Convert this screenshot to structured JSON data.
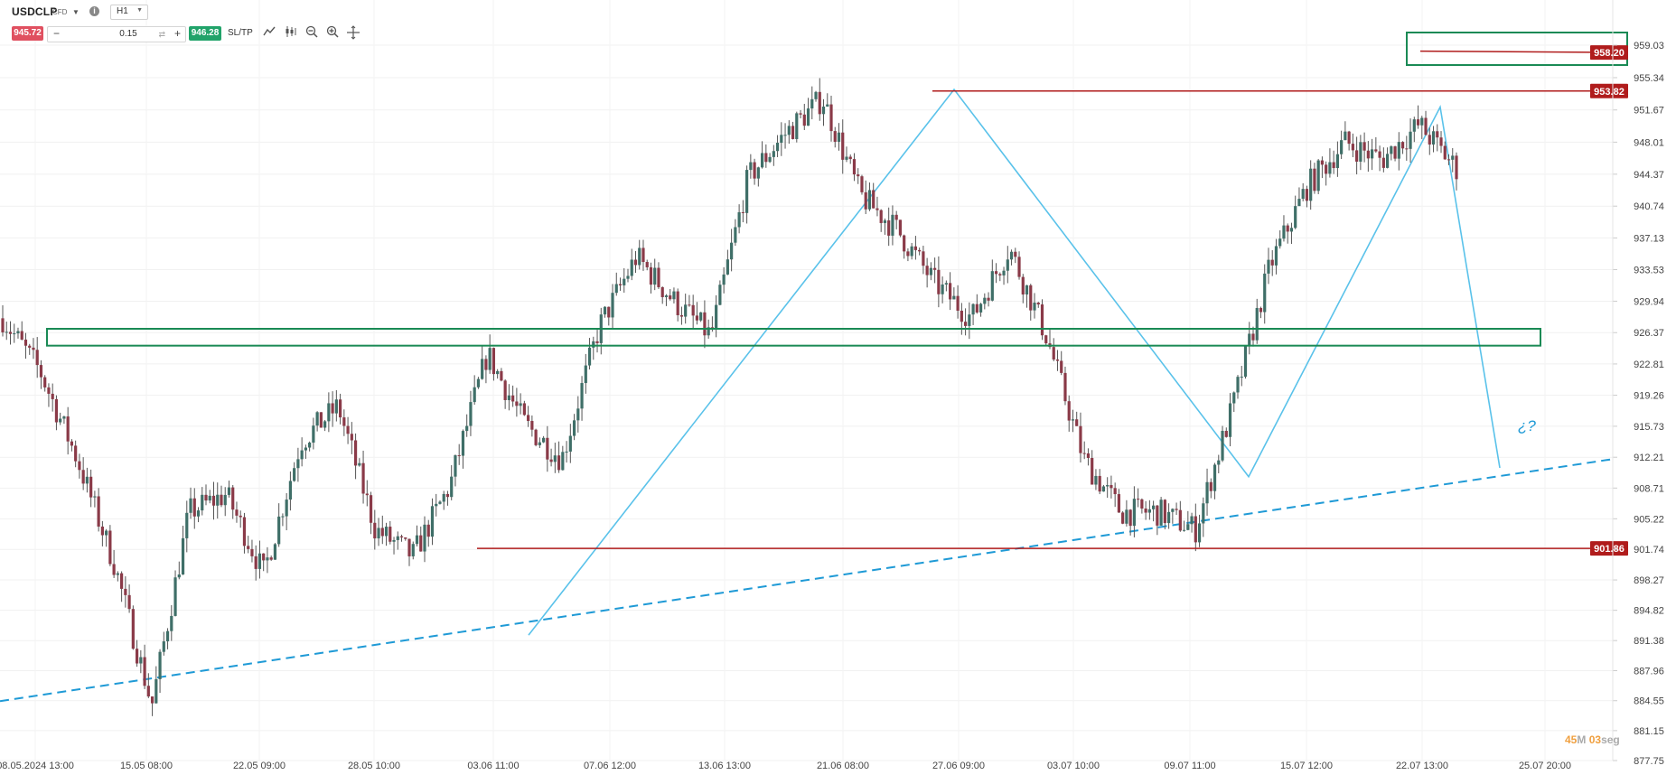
{
  "toolbar": {
    "symbol": "USDCLP",
    "instrument_type": "CFD",
    "timeframe": "H1",
    "sell_price": "945.72",
    "quantity": "0.15",
    "buy_price": "946.28",
    "sltp_label": "SL/TP",
    "icons": [
      "chart-type-icon",
      "indicators-icon",
      "zoom-out-icon",
      "zoom-in-icon",
      "crosshair-icon"
    ]
  },
  "colors": {
    "sell": "#e05060",
    "buy": "#21a36a",
    "bull_candle": "#3f6f68",
    "bear_candle": "#8a3a48",
    "resistance": "#b01c1c",
    "zone": "#1a8a55",
    "trendline": "#1f9ad6",
    "projection": "#5ac2ea"
  },
  "price_axis": {
    "ticks": [
      "959.03",
      "955.34",
      "951.67",
      "948.01",
      "944.37",
      "940.74",
      "937.13",
      "933.53",
      "929.94",
      "926.37",
      "922.81",
      "919.26",
      "915.73",
      "912.21",
      "908.71",
      "905.22",
      "901.74",
      "898.27",
      "894.82",
      "891.38",
      "887.96",
      "884.55",
      "881.15",
      "877.75"
    ],
    "min": 877.75,
    "max": 959.03
  },
  "time_axis": {
    "labels": [
      "08.05.2024 13:00",
      "15.05 08:00",
      "22.05 09:00",
      "28.05 10:00",
      "03.06 11:00",
      "07.06 12:00",
      "13.06 13:00",
      "21.06 08:00",
      "27.06 09:00",
      "03.07 10:00",
      "09.07 11:00",
      "15.07 12:00",
      "22.07 13:00",
      "25.07 20:00"
    ]
  },
  "price_tags": {
    "upper_box": "958.20",
    "resistance": "953.82",
    "support": "901.86"
  },
  "annotation": "¿?",
  "timer": {
    "minutes": "45",
    "minutes_unit": "M",
    "seconds": "03",
    "seconds_unit": "seg"
  },
  "chart_data": {
    "type": "candlestick",
    "symbol": "USDCLP",
    "timeframe": "H1",
    "ylim": [
      877.75,
      959.03
    ],
    "x": [
      "08.05",
      "15.05",
      "22.05",
      "28.05",
      "03.06",
      "07.06",
      "13.06",
      "21.06",
      "27.06",
      "03.07",
      "09.07",
      "15.07",
      "22.07"
    ],
    "close_path": [
      928,
      922,
      912,
      900,
      884,
      906,
      908,
      899,
      914,
      918,
      904,
      901,
      909,
      924,
      916,
      912,
      927,
      935,
      930,
      926,
      944,
      949,
      953,
      942,
      938,
      932,
      928,
      936,
      926,
      912,
      906,
      906,
      904,
      918,
      934,
      943,
      948,
      946,
      950,
      945
    ],
    "horizontal_levels": [
      {
        "price": 953.82,
        "kind": "resistance"
      },
      {
        "price": 901.86,
        "kind": "support"
      },
      {
        "price": 958.2,
        "kind": "upper-box"
      }
    ],
    "zone": {
      "low": 925.3,
      "high": 926.6
    },
    "trendline": {
      "from": 884.5,
      "to": 912.0
    },
    "projection_target": 911.0
  }
}
